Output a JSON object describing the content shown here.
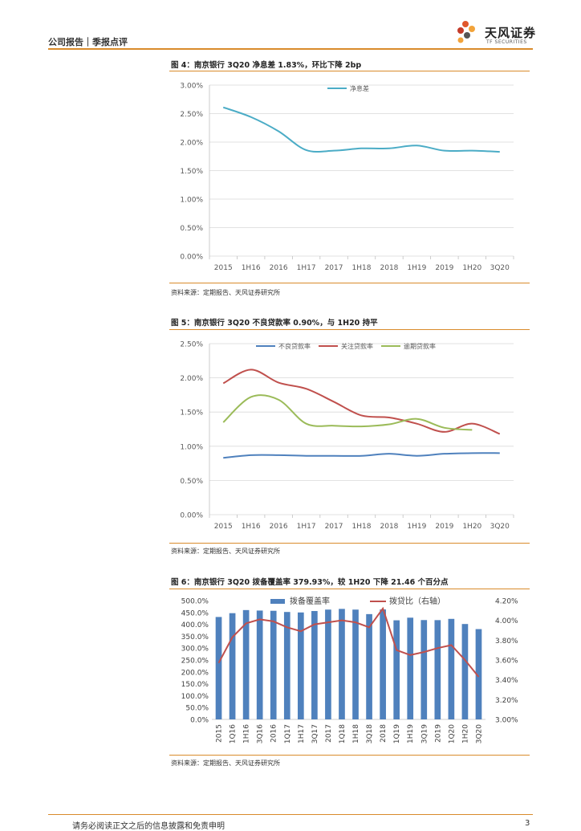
{
  "header": {
    "left": "公司报告｜季报点评"
  },
  "logo": {
    "name": "天风证券",
    "sub": "TF SECURITIES"
  },
  "footer": {
    "text": "请务必阅读正文之后的信息披露和免责申明",
    "page": "3"
  },
  "colors": {
    "accent": "#d98b2b",
    "teal": "#4bacc6",
    "blue": "#4f81bd",
    "red": "#c0504d",
    "green": "#9bbb59"
  },
  "figures": [
    {
      "title": "图 4：南京银行 3Q20 净息差 1.83%，环比下降 2bp",
      "source": "资料来源：定期报告、天风证券研究所"
    },
    {
      "title": "图 5：南京银行 3Q20 不良贷款率 0.90%，与 1H20 持平",
      "source": "资料来源：定期报告、天风证券研究所"
    },
    {
      "title": "图 6：南京银行 3Q20 拨备覆盖率 379.93%，较 1H20 下降 21.46 个百分点",
      "source": "资料来源：定期报告、天风证券研究所"
    }
  ],
  "chart_data": [
    {
      "type": "line",
      "categories": [
        "2015",
        "1H16",
        "2016",
        "1H17",
        "2017",
        "1H18",
        "2018",
        "1H19",
        "2019",
        "1H20",
        "3Q20"
      ],
      "series": [
        {
          "name": "净息差",
          "values": [
            2.61,
            2.44,
            2.19,
            1.86,
            1.85,
            1.89,
            1.89,
            1.94,
            1.85,
            1.85,
            1.83
          ]
        }
      ],
      "yticks": [
        "0.00%",
        "0.50%",
        "1.00%",
        "1.50%",
        "2.00%",
        "2.50%",
        "3.00%"
      ],
      "ylim": [
        0,
        3
      ],
      "legend": "top"
    },
    {
      "type": "line",
      "categories": [
        "2015",
        "1H16",
        "2016",
        "1H17",
        "2017",
        "1H18",
        "2018",
        "1H19",
        "2019",
        "1H20",
        "3Q20"
      ],
      "series": [
        {
          "name": "不良贷款率",
          "values": [
            0.83,
            0.87,
            0.87,
            0.86,
            0.86,
            0.86,
            0.89,
            0.86,
            0.89,
            0.9,
            0.9
          ]
        },
        {
          "name": "关注贷款率",
          "values": [
            1.92,
            2.12,
            1.93,
            1.84,
            1.65,
            1.45,
            1.42,
            1.33,
            1.21,
            1.33,
            1.18
          ]
        },
        {
          "name": "逾期贷款率",
          "values": [
            1.35,
            1.72,
            1.68,
            1.33,
            1.3,
            1.29,
            1.32,
            1.4,
            1.27,
            1.24,
            null
          ]
        }
      ],
      "yticks": [
        "0.00%",
        "0.50%",
        "1.00%",
        "1.50%",
        "2.00%",
        "2.50%"
      ],
      "ylim": [
        0,
        2.5
      ],
      "legend": "top"
    },
    {
      "type": "bar+line",
      "categories": [
        "2015",
        "1Q16",
        "1H16",
        "3Q16",
        "2016",
        "1Q17",
        "1H17",
        "3Q17",
        "2017",
        "1Q18",
        "1H18",
        "3Q18",
        "2018",
        "1Q19",
        "1H19",
        "3Q19",
        "2019",
        "1Q20",
        "1H20",
        "3Q20"
      ],
      "series": [
        {
          "name": "拨备覆盖率",
          "axis": "left",
          "values": [
            430.95,
            447,
            460,
            458,
            457,
            452,
            450,
            456,
            462,
            465,
            462,
            443,
            462.68,
            417,
            428,
            418,
            417.73,
            423,
            401.39,
            379.93
          ]
        },
        {
          "name": "拨贷比（右轴）",
          "axis": "right",
          "values": [
            3.57,
            3.83,
            3.97,
            4.01,
            3.99,
            3.93,
            3.89,
            3.96,
            3.98,
            4.0,
            3.98,
            3.93,
            4.12,
            3.7,
            3.65,
            3.68,
            3.72,
            3.75,
            3.6,
            3.43
          ]
        }
      ],
      "yticks_left": [
        "0.0%",
        "50.0%",
        "100.0%",
        "150.0%",
        "200.0%",
        "250.0%",
        "300.0%",
        "350.0%",
        "400.0%",
        "450.0%",
        "500.0%"
      ],
      "yticks_right": [
        "3.00%",
        "3.20%",
        "3.40%",
        "3.60%",
        "3.80%",
        "4.00%",
        "4.20%"
      ],
      "ylim_left": [
        0,
        500
      ],
      "ylim_right": [
        3.0,
        4.2
      ],
      "legend": "top"
    }
  ]
}
